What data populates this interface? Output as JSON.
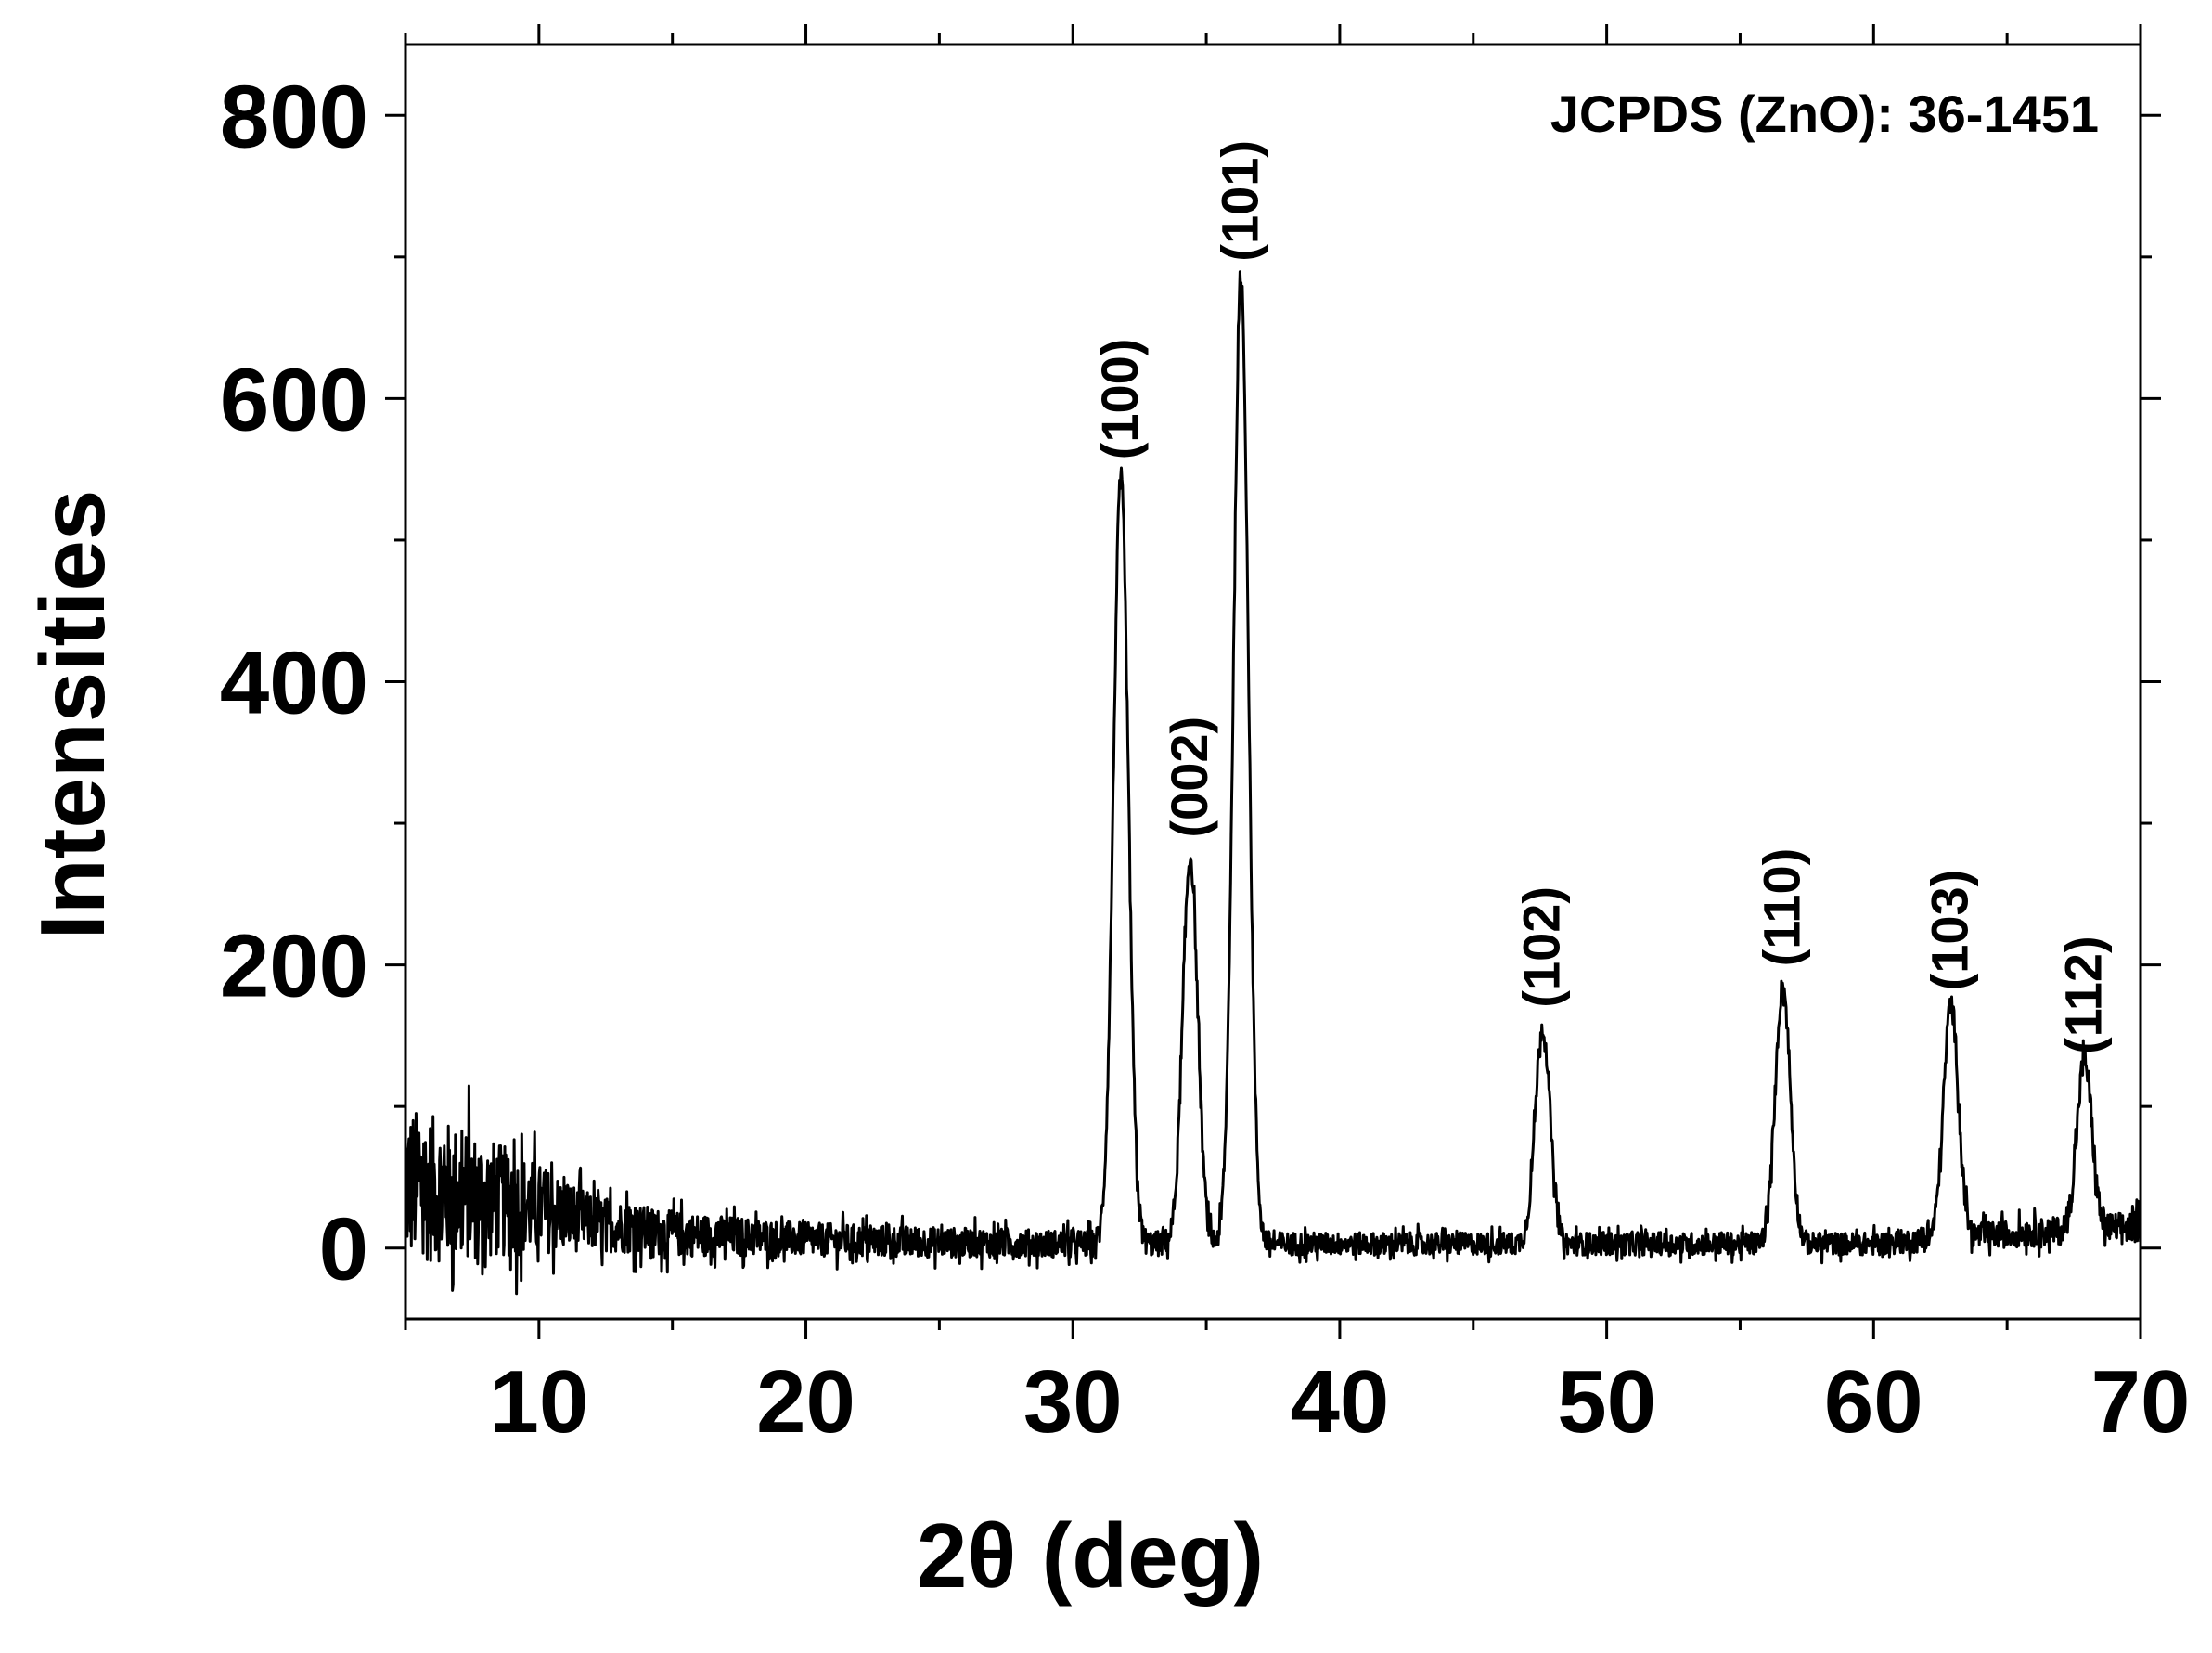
{
  "chart_data": {
    "type": "line",
    "xlabel": "2θ (deg)",
    "ylabel": "Intensities",
    "xlim": [
      5,
      70
    ],
    "ylim": [
      -50,
      850
    ],
    "x_ticks": [
      10,
      20,
      30,
      40,
      50,
      60,
      70
    ],
    "y_ticks": [
      0,
      200,
      400,
      600,
      800
    ],
    "grid": false,
    "line_color": "#000000",
    "annotation": "JCPDS (ZnO): 36-1451",
    "series": [
      {
        "noise_baseline": [
          [
            5,
            45
          ],
          [
            8,
            35
          ],
          [
            10,
            28
          ],
          [
            12,
            18
          ],
          [
            15,
            10
          ],
          [
            20,
            6
          ],
          [
            25,
            4
          ],
          [
            30,
            3
          ],
          [
            35,
            3
          ],
          [
            40,
            3
          ],
          [
            50,
            3
          ],
          [
            60,
            3
          ],
          [
            65,
            10
          ],
          [
            70,
            15
          ]
        ],
        "noise_amplitude": [
          [
            5,
            70
          ],
          [
            8,
            55
          ],
          [
            10,
            40
          ],
          [
            12,
            25
          ],
          [
            15,
            20
          ],
          [
            20,
            15
          ],
          [
            30,
            12
          ],
          [
            40,
            10
          ],
          [
            50,
            10
          ],
          [
            60,
            10
          ],
          [
            70,
            14
          ]
        ],
        "peaks": [
          {
            "label": "(100)",
            "x": 31.8,
            "y": 545
          },
          {
            "label": "(002)",
            "x": 34.4,
            "y": 278
          },
          {
            "label": "(101)",
            "x": 36.3,
            "y": 685
          },
          {
            "label": "(102)",
            "x": 47.6,
            "y": 158
          },
          {
            "label": "(110)",
            "x": 56.6,
            "y": 187
          },
          {
            "label": "(103)",
            "x": 62.9,
            "y": 170
          },
          {
            "label": "(112)",
            "x": 67.9,
            "y": 125
          }
        ]
      }
    ]
  }
}
